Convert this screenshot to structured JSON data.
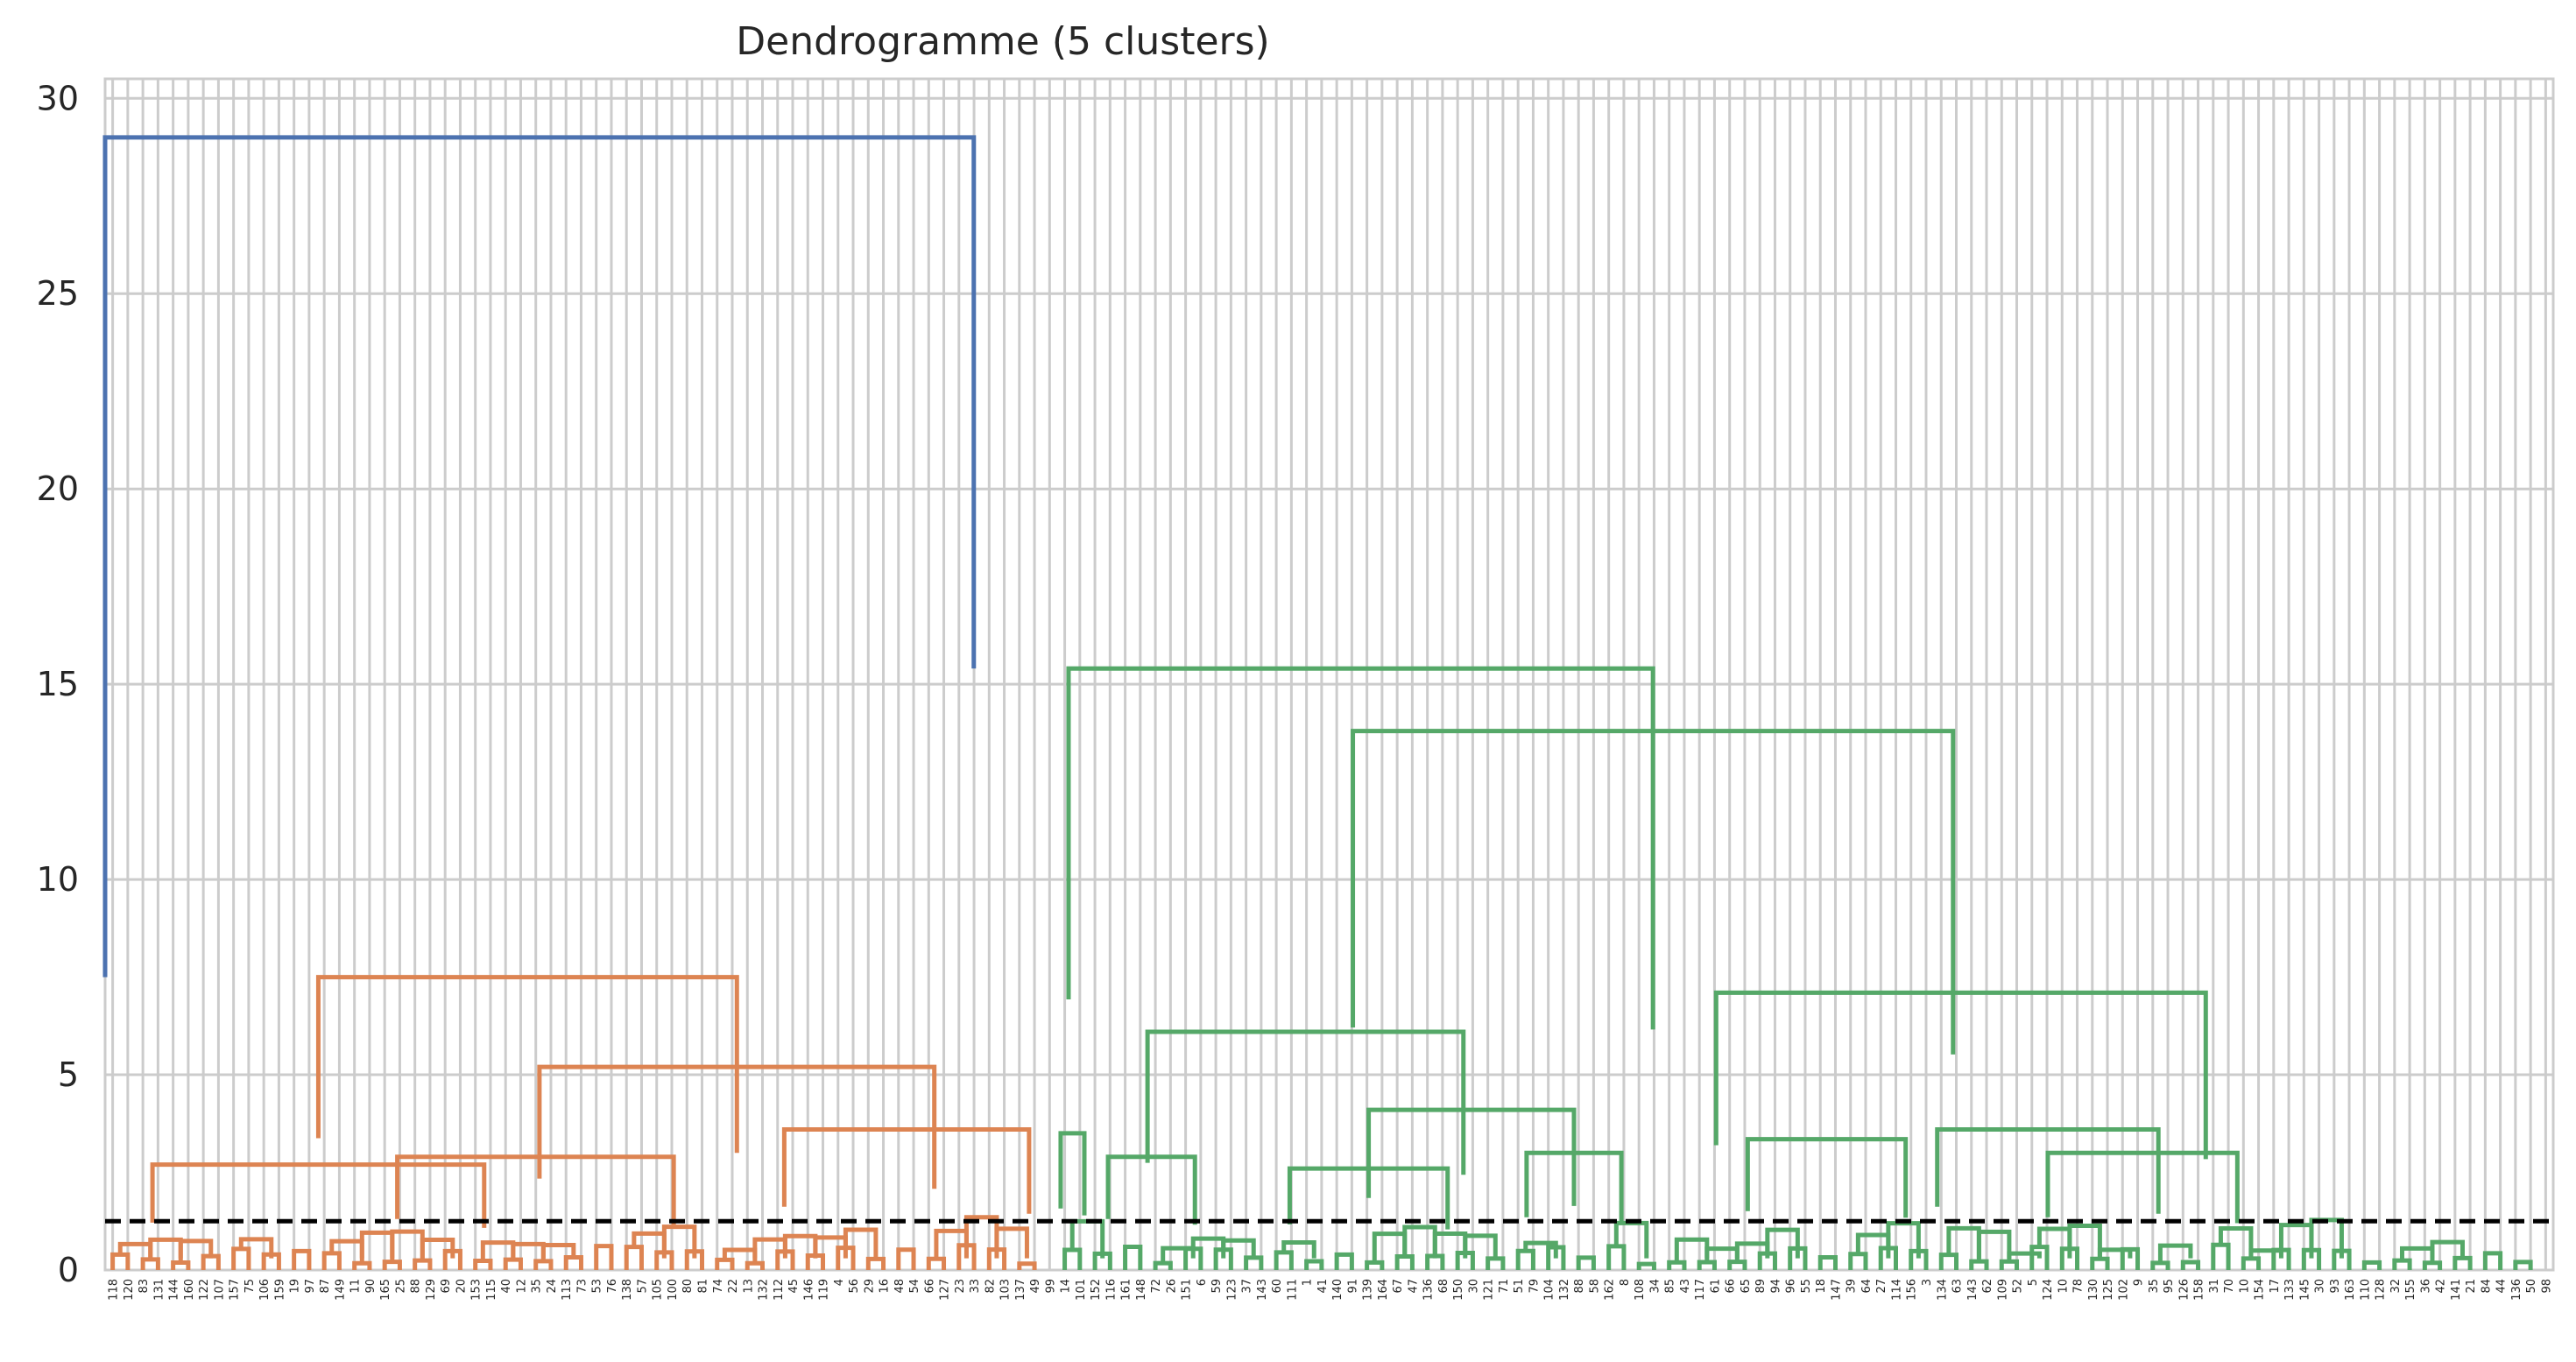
{
  "chart_data": {
    "type": "dendrogram",
    "title": "Dendrogramme (5 clusters)",
    "xlabel": "",
    "ylabel": "",
    "ylim": [
      0,
      30.5
    ],
    "yticks": [
      0,
      5,
      10,
      15,
      20,
      25,
      30
    ],
    "grid": true,
    "cut_line": {
      "y": 1.25,
      "style": "dashed",
      "color": "#000000"
    },
    "colors": {
      "orange_cluster": "#dd8452",
      "green_cluster": "#55a868",
      "root": "#4c72b0",
      "grid": "#cccccc"
    },
    "leaves": [
      "118",
      "120",
      "83",
      "131",
      "144",
      "160",
      "122",
      "107",
      "157",
      "75",
      "106",
      "159",
      "19",
      "97",
      "87",
      "149",
      "11",
      "90",
      "165",
      "25",
      "88",
      "129",
      "69",
      "20",
      "153",
      "115",
      "40",
      "12",
      "35",
      "24",
      "113",
      "73",
      "53",
      "76",
      "138",
      "57",
      "105",
      "100",
      "80",
      "81",
      "74",
      "22",
      "13",
      "132",
      "112",
      "45",
      "146",
      "119",
      "4",
      "56",
      "29",
      "16",
      "48",
      "54",
      "66",
      "127",
      "23",
      "33",
      "82",
      "103",
      "137",
      "49",
      "99",
      "14",
      "101",
      "152",
      "116",
      "161",
      "148",
      "72",
      "26",
      "151",
      "6",
      "59",
      "123",
      "37",
      "143",
      "60",
      "111",
      "1",
      "41",
      "140",
      "91",
      "139",
      "164",
      "67",
      "47",
      "136",
      "68",
      "150",
      "30",
      "121",
      "71",
      "51",
      "79",
      "104",
      "132",
      "88",
      "58",
      "162",
      "8",
      "108",
      "34",
      "85",
      "43",
      "117",
      "61",
      "66",
      "65",
      "89",
      "94",
      "96",
      "55",
      "18",
      "147",
      "39",
      "64",
      "27",
      "114",
      "156",
      "3",
      "134",
      "63",
      "143",
      "62",
      "109",
      "52",
      "5",
      "124",
      "10",
      "78",
      "130",
      "125",
      "102",
      "9",
      "35",
      "95",
      "126",
      "158",
      "31",
      "70",
      "10",
      "154",
      "17",
      "133",
      "145",
      "30",
      "93",
      "163",
      "110",
      "128",
      "32",
      "155",
      "36",
      "42",
      "141",
      "21",
      "84",
      "44",
      "136",
      "50",
      "98"
    ],
    "links": [
      {
        "x": [
          0,
          5.5
        ],
        "h": 29.0,
        "c": "root",
        "l": "orange",
        "r": "green"
      },
      {
        "name": "orange",
        "x": [
          1.35,
          4.0
        ],
        "h": 7.5
      },
      {
        "x": [
          0.3,
          2.4
        ],
        "h": 2.7
      },
      {
        "x": [
          2.75,
          5.25
        ],
        "h": 5.2
      },
      {
        "x": [
          1.85,
          3.6
        ],
        "h": 2.9
      },
      {
        "x": [
          4.3,
          5.85
        ],
        "h": 3.6
      },
      {
        "name": "green",
        "x": [
          6.1,
          9.8
        ],
        "h": 15.4
      },
      {
        "x": [
          7.9,
          11.7
        ],
        "h": 13.8
      },
      {
        "x": [
          6.6,
          8.6
        ],
        "h": 6.1
      },
      {
        "x": [
          10.2,
          13.3
        ],
        "h": 7.1
      },
      {
        "x": [
          8.0,
          9.3
        ],
        "h": 4.1
      },
      {
        "x": [
          7.5,
          8.5
        ],
        "h": 2.6
      },
      {
        "x": [
          9.0,
          9.6
        ],
        "h": 3.0
      },
      {
        "x": [
          10.4,
          11.4
        ],
        "h": 3.35
      },
      {
        "x": [
          11.6,
          13.0
        ],
        "h": 3.6
      },
      {
        "x": [
          12.3,
          13.5
        ],
        "h": 3.0
      },
      {
        "x": [
          6.05,
          6.2
        ],
        "h": 3.5
      },
      {
        "x": [
          6.35,
          6.9
        ],
        "h": 2.9
      }
    ]
  }
}
